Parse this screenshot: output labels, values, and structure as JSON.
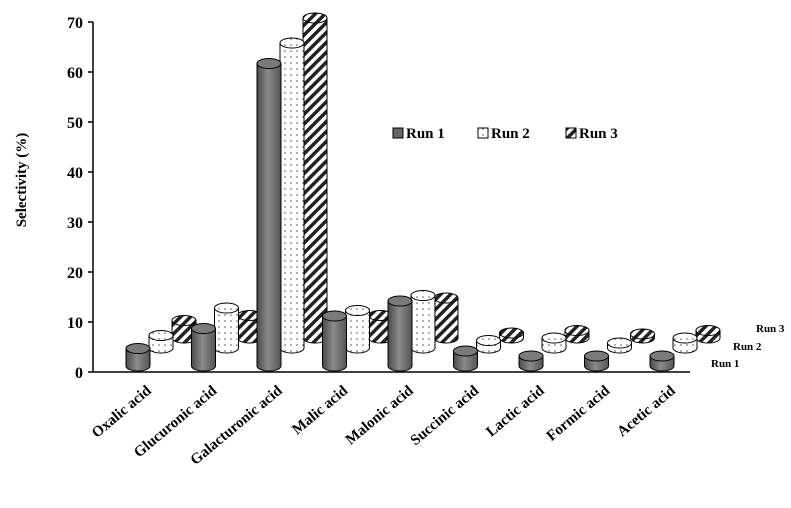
{
  "chart_data": {
    "type": "bar",
    "title": "",
    "xlabel": "",
    "ylabel": "Selectivity (%)",
    "ylim": [
      0,
      70
    ],
    "yticks": [
      0,
      10,
      20,
      30,
      40,
      50,
      60,
      70
    ],
    "categories": [
      "Oxalic acid",
      "Glucuronic acid",
      "Galacturonic acid",
      "Malic acid",
      "Malonic acid",
      "Succinic acid",
      "Lactic acid",
      "Formic acid",
      "Acetic acid"
    ],
    "series": [
      {
        "name": "Run 1",
        "values": [
          3.5,
          7.5,
          60.5,
          10,
          13,
          3,
          2,
          2,
          2
        ]
      },
      {
        "name": "Run 2",
        "values": [
          2.5,
          8,
          61,
          7.5,
          10.5,
          1.5,
          2,
          1,
          2
        ]
      },
      {
        "name": "Run 3",
        "values": [
          3.5,
          4.5,
          64,
          4.5,
          8,
          1,
          1.5,
          0.5,
          1.5
        ]
      }
    ],
    "depth_axis_labels": [
      "Run 1",
      "Run 2",
      "Run 3"
    ],
    "legend_position": "right",
    "grid": false,
    "style": "3d-cylinder",
    "colors": {
      "Run 1": "#6e6e6e",
      "Run 2": "#ffffff",
      "Run 3": "#ffffff"
    },
    "patterns": {
      "Run 1": "solid-gray",
      "Run 2": "dotted",
      "Run 3": "diagonal-stripes"
    }
  }
}
